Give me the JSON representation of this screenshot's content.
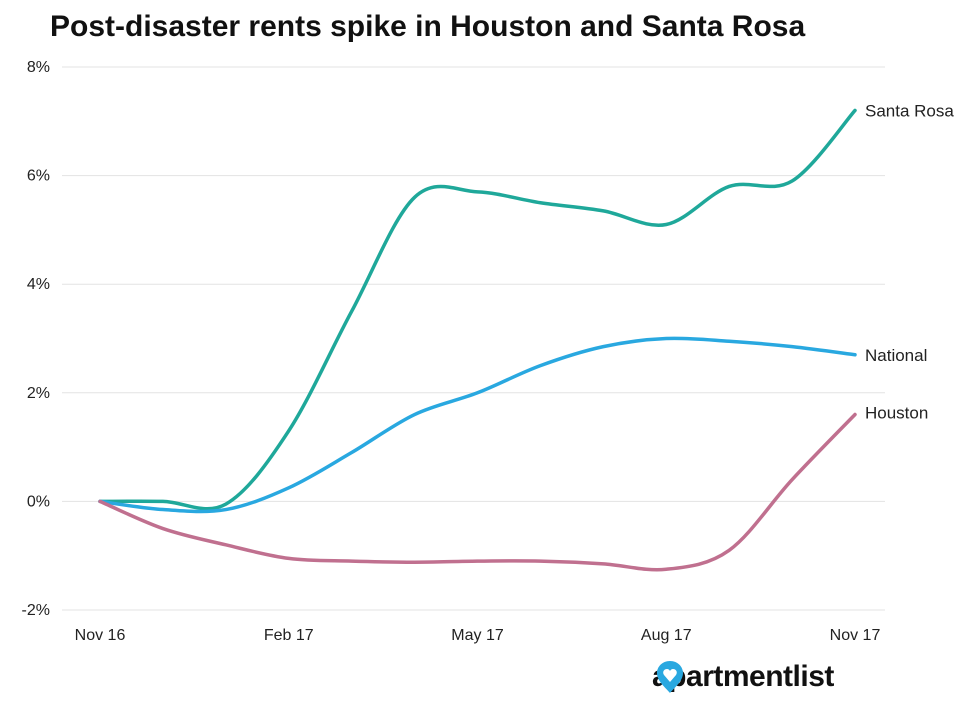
{
  "chart_data": {
    "type": "line",
    "title": "Post-disaster rents spike in Houston and Santa Rosa",
    "xlabel": "",
    "ylabel": "",
    "x_ticks": [
      "Nov 16",
      "Feb 17",
      "May 17",
      "Aug 17",
      "Nov 17"
    ],
    "y_ticks": [
      "8%",
      "6%",
      "4%",
      "2%",
      "0%",
      "-2%"
    ],
    "ylim": [
      -2,
      8
    ],
    "grid": true,
    "legend": "inline labels at line ends",
    "series": [
      {
        "name": "Santa Rosa",
        "color": "#1fa89a",
        "x": [
          0,
          1,
          2,
          3,
          4,
          5,
          6,
          7,
          8,
          9,
          10,
          11,
          12
        ],
        "values": [
          0.0,
          0.0,
          -0.05,
          1.3,
          3.5,
          5.6,
          5.7,
          5.5,
          5.35,
          5.1,
          5.8,
          5.9,
          7.2
        ]
      },
      {
        "name": "National",
        "color": "#29a8e0",
        "x": [
          0,
          1,
          2,
          3,
          4,
          5,
          6,
          7,
          8,
          9,
          10,
          11,
          12
        ],
        "values": [
          0.0,
          -0.15,
          -0.15,
          0.25,
          0.9,
          1.6,
          2.0,
          2.5,
          2.85,
          3.0,
          2.95,
          2.85,
          2.7
        ]
      },
      {
        "name": "Houston",
        "color": "#c0708f",
        "x": [
          0,
          1,
          2,
          3,
          4,
          5,
          6,
          7,
          8,
          9,
          10,
          11,
          12
        ],
        "values": [
          0.0,
          -0.5,
          -0.8,
          -1.05,
          -1.1,
          -1.12,
          -1.1,
          -1.1,
          -1.15,
          -1.25,
          -0.9,
          0.4,
          1.6
        ]
      }
    ],
    "x_tick_positions": [
      0,
      3,
      6,
      9,
      12
    ]
  },
  "branding": {
    "logo_text_1": "apartment",
    "logo_text_2": "list",
    "pin_color": "#29a8e0"
  }
}
